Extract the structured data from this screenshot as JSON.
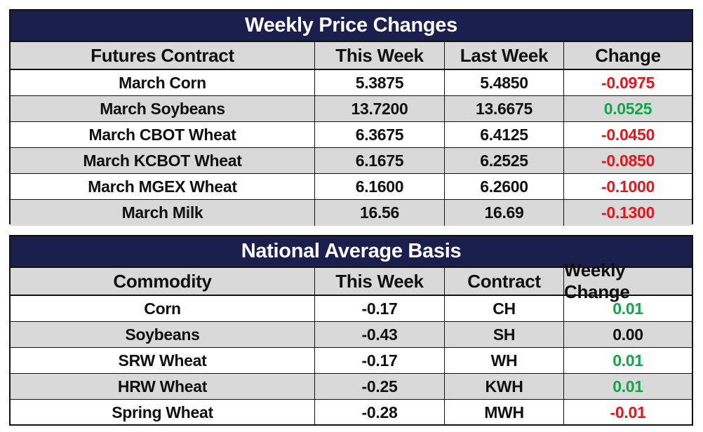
{
  "weekly_price_changes": {
    "title": "Weekly Price Changes",
    "headers": [
      "Futures Contract",
      "This Week",
      "Last Week",
      "Change"
    ],
    "rows": [
      {
        "contract": "March Corn",
        "this_week": "5.3875",
        "last_week": "5.4850",
        "change": "-0.0975",
        "change_color": "#e8141b"
      },
      {
        "contract": "March Soybeans",
        "this_week": "13.7200",
        "last_week": "13.6675",
        "change": "0.0525",
        "change_color": "#12a54a"
      },
      {
        "contract": "March CBOT Wheat",
        "this_week": "6.3675",
        "last_week": "6.4125",
        "change": "-0.0450",
        "change_color": "#e8141b"
      },
      {
        "contract": "March KCBOT Wheat",
        "this_week": "6.1675",
        "last_week": "6.2525",
        "change": "-0.0850",
        "change_color": "#e8141b"
      },
      {
        "contract": "March MGEX Wheat",
        "this_week": "6.1600",
        "last_week": "6.2600",
        "change": "-0.1000",
        "change_color": "#e8141b"
      },
      {
        "contract": "March Milk",
        "this_week": "16.56",
        "last_week": "16.69",
        "change": "-0.1300",
        "change_color": "#e8141b"
      }
    ]
  },
  "national_average_basis": {
    "title": "National Average Basis",
    "headers": [
      "Commodity",
      "This Week",
      "Contract",
      "Weekly Change"
    ],
    "rows": [
      {
        "commodity": "Corn",
        "this_week": "-0.17",
        "contract": "CH",
        "weekly_change": "0.01",
        "change_color": "#12a54a"
      },
      {
        "commodity": "Soybeans",
        "this_week": "-0.43",
        "contract": "SH",
        "weekly_change": "0.00",
        "change_color": "#111111"
      },
      {
        "commodity": "SRW Wheat",
        "this_week": "-0.17",
        "contract": "WH",
        "weekly_change": "0.01",
        "change_color": "#12a54a"
      },
      {
        "commodity": "HRW Wheat",
        "this_week": "-0.25",
        "contract": "KWH",
        "weekly_change": "0.01",
        "change_color": "#12a54a"
      },
      {
        "commodity": "Spring Wheat",
        "this_week": "-0.28",
        "contract": "MWH",
        "weekly_change": "-0.01",
        "change_color": "#e8141b"
      }
    ]
  }
}
